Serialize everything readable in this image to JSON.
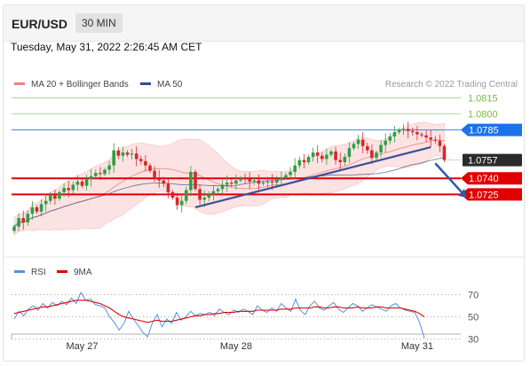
{
  "header": {
    "symbol": "EUR/USD",
    "interval": "30 MIN",
    "timestamp": "Tuesday, May 31, 2022 2:26:45 AM CET"
  },
  "colors": {
    "bollinger": "#f08080",
    "ma50": "#2f4f8f",
    "support_line": "#e00000",
    "price_label": "#2b2b2b",
    "level_green": "#7ab648",
    "level_blue": "#1a73e8",
    "trendline": "#3b4f9a",
    "rsi": "#5b8fde",
    "rsi_ma": "#e00000"
  },
  "chart_data": [
    {
      "type": "candlestick",
      "legend": [
        {
          "label": "MA 20 + Bollinger Bands",
          "color": "#f08080"
        },
        {
          "label": "MA 50",
          "color": "#2f4f8f"
        }
      ],
      "legend_placement": "top-left",
      "watermark": "Research © 2022 Trading Central",
      "ylim": [
        1.0675,
        1.084
      ],
      "x_ticks": [
        {
          "label": "May 27",
          "index": 15
        },
        {
          "label": "May 28",
          "index": 49
        },
        {
          "label": "May 31",
          "index": 89
        }
      ],
      "levels": [
        {
          "value": 1.0815,
          "label": "1.0815",
          "style": "green"
        },
        {
          "value": 1.08,
          "label": "1.0800",
          "style": "green"
        },
        {
          "value": 1.0785,
          "label": "1.0785",
          "style": "blue"
        },
        {
          "value": 1.0757,
          "label": "1.0757",
          "style": "price"
        },
        {
          "value": 1.074,
          "label": "1.0740",
          "style": "red"
        },
        {
          "value": 1.0725,
          "label": "1.0725",
          "style": "red"
        }
      ],
      "trendline": {
        "start": {
          "index": 40,
          "value": 1.0713
        },
        "end": {
          "index": 92,
          "value": 1.0769
        }
      },
      "arrow": {
        "start": {
          "index": 93,
          "value": 1.0754
        },
        "end": {
          "index": 100,
          "value": 1.0722
        }
      },
      "close": [
        1.0695,
        1.0703,
        1.0699,
        1.0707,
        1.0713,
        1.0709,
        1.0716,
        1.0719,
        1.0724,
        1.0721,
        1.0727,
        1.0731,
        1.0729,
        1.0734,
        1.0737,
        1.0733,
        1.0739,
        1.0742,
        1.0745,
        1.0744,
        1.0748,
        1.0752,
        1.0766,
        1.0761,
        1.0764,
        1.0762,
        1.0763,
        1.0758,
        1.0756,
        1.0752,
        1.0747,
        1.0741,
        1.0738,
        1.0735,
        1.0727,
        1.0722,
        1.0715,
        1.0719,
        1.0729,
        1.0746,
        1.073,
        1.072,
        1.0722,
        1.0725,
        1.0728,
        1.073,
        1.0734,
        1.0736,
        1.0735,
        1.0738,
        1.074,
        1.0739,
        1.0737,
        1.0738,
        1.0735,
        1.0736,
        1.0737,
        1.0736,
        1.0739,
        1.0741,
        1.0743,
        1.0746,
        1.0752,
        1.0757,
        1.0755,
        1.076,
        1.0764,
        1.0761,
        1.0758,
        1.0762,
        1.0765,
        1.0757,
        1.0755,
        1.076,
        1.0768,
        1.0772,
        1.0776,
        1.077,
        1.0766,
        1.0759,
        1.0764,
        1.0771,
        1.0775,
        1.0779,
        1.0783,
        1.0785,
        1.0786,
        1.0784,
        1.0783,
        1.0781,
        1.078,
        1.0778,
        1.0776,
        1.0775,
        1.077,
        1.0757
      ],
      "price_label": "1.0757"
    },
    {
      "type": "line",
      "title": "RSI",
      "legend": [
        {
          "label": "RSI",
          "color": "#5b8fde"
        },
        {
          "label": "9MA",
          "color": "#e00000"
        }
      ],
      "ylim": [
        20,
        80
      ],
      "y_ticks": [
        70,
        50,
        30
      ],
      "series": [
        {
          "name": "RSI",
          "values": [
            48,
            55,
            51,
            57,
            60,
            56,
            62,
            58,
            63,
            60,
            64,
            61,
            67,
            62,
            72,
            65,
            66,
            61,
            60,
            58,
            50,
            45,
            38,
            44,
            55,
            48,
            42,
            36,
            32,
            45,
            52,
            41,
            48,
            44,
            54,
            47,
            50,
            55,
            51,
            53,
            52,
            54,
            51,
            57,
            54,
            52,
            56,
            54,
            57,
            55,
            52,
            60,
            56,
            54,
            58,
            55,
            62,
            58,
            55,
            66,
            56,
            52,
            60,
            64,
            58,
            56,
            60,
            63,
            57,
            54,
            58,
            62,
            60,
            55,
            58,
            61,
            59,
            57,
            55,
            60,
            62,
            58,
            56,
            55,
            54,
            45,
            31
          ]
        },
        {
          "name": "9MA",
          "values": [
            53,
            54,
            55,
            56,
            57,
            58,
            59,
            59,
            60,
            61,
            62,
            63,
            64,
            65,
            65,
            65,
            64,
            63,
            62,
            60,
            58,
            55,
            52,
            50,
            49,
            48,
            47,
            46,
            45,
            46,
            47,
            46,
            46,
            46,
            47,
            48,
            49,
            50,
            51,
            51,
            52,
            52,
            53,
            53,
            54,
            54,
            54,
            55,
            55,
            55,
            55,
            56,
            56,
            56,
            56,
            56,
            57,
            57,
            57,
            58,
            58,
            58,
            58,
            59,
            59,
            58,
            58,
            59,
            59,
            58,
            58,
            58,
            59,
            58,
            58,
            58,
            59,
            59,
            58,
            58,
            58,
            58,
            57,
            56,
            55,
            53,
            50
          ]
        }
      ]
    }
  ]
}
